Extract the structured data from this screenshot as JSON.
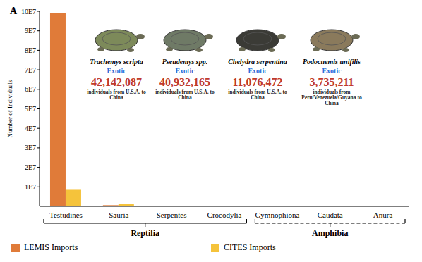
{
  "chart_data": {
    "type": "bar",
    "panel_label": "A",
    "categories": [
      "Testudines",
      "Sauria",
      "Serpentes",
      "Crocodylia",
      "Gymnophiona",
      "Caudata",
      "Anura"
    ],
    "series": [
      {
        "name": "LEMIS Imports",
        "color": "#E07B39",
        "values": [
          99000000,
          600000,
          300000,
          50000,
          0,
          20000,
          350000
        ]
      },
      {
        "name": "CITES Imports",
        "color": "#F5C33B",
        "values": [
          8500000,
          1300000,
          250000,
          20000,
          0,
          0,
          0
        ]
      }
    ],
    "y_label": "Number of Individuals",
    "ylim": [
      0,
      100000000
    ],
    "yticks": [
      {
        "value": 10000000,
        "label": "1E7"
      },
      {
        "value": 20000000,
        "label": "2E7"
      },
      {
        "value": 30000000,
        "label": "3E7"
      },
      {
        "value": 40000000,
        "label": "4E7"
      },
      {
        "value": 50000000,
        "label": "5E7"
      },
      {
        "value": 60000000,
        "label": "6E7"
      },
      {
        "value": 70000000,
        "label": "7E7"
      },
      {
        "value": 80000000,
        "label": "8E7"
      },
      {
        "value": 90000000,
        "label": "9E7"
      },
      {
        "value": 100000000,
        "label": "10E7"
      }
    ],
    "grid": false,
    "legend": "bottom",
    "groups": [
      {
        "label": "Reptilia",
        "categories": [
          "Testudines",
          "Sauria",
          "Serpentes",
          "Crocodylia"
        ],
        "line_style": "solid"
      },
      {
        "label": "Amphibia",
        "categories": [
          "Gymnophiona",
          "Caudata",
          "Anura"
        ],
        "line_style": "dashed"
      }
    ],
    "annotations": [
      {
        "species": "Trachemys scripta",
        "status": "Exotic",
        "count": "42,142,087",
        "description": "individuals from U.S.A. to China"
      },
      {
        "species": "Pseudemys spp.",
        "status": "Exotic",
        "count": "40,932,165",
        "description": "individuals from U.S.A. to China"
      },
      {
        "species": "Chelydra serpentina",
        "status": "Exotic",
        "count": "11,076,472",
        "description": "individuals from U.S.A. to China"
      },
      {
        "species": "Podocnemis unifilis",
        "status": "Exotic",
        "count": "3,735,211",
        "description": "individuals from Peru/Venezuela/Guyana to China"
      }
    ]
  }
}
